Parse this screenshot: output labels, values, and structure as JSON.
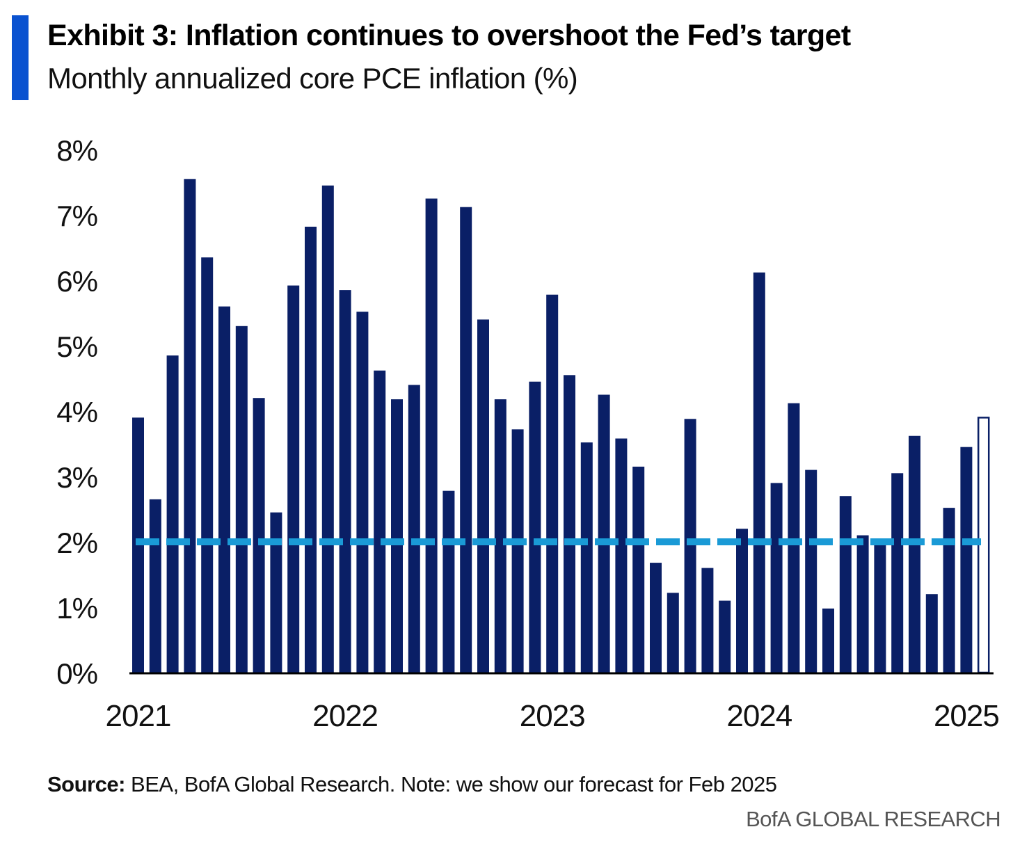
{
  "header": {
    "title": "Exhibit 3: Inflation continues to overshoot the Fed’s target",
    "subtitle": "Monthly annualized core PCE inflation (%)"
  },
  "footer": {
    "source_label": "Source:",
    "source_text": " BEA, BofA Global Research. Note: we show our forecast for Feb 2025",
    "brand": "BofA GLOBAL RESEARCH"
  },
  "colors": {
    "accent": "#0a52d0",
    "bar": "#0a1f66",
    "forecast_outline": "#0a1f66",
    "target_line": "#1a9ad6",
    "axis": "#000000"
  },
  "chart_data": {
    "type": "bar",
    "title": "Exhibit 3: Inflation continues to overshoot the Fed’s target",
    "subtitle": "Monthly annualized core PCE inflation (%)",
    "ylim": [
      0,
      8
    ],
    "yticks": [
      0,
      1,
      2,
      3,
      4,
      5,
      6,
      7,
      8
    ],
    "ytick_labels": [
      "0%",
      "1%",
      "2%",
      "3%",
      "4%",
      "5%",
      "6%",
      "7%",
      "8%"
    ],
    "xtick_labels": [
      "2021",
      "2022",
      "2023",
      "2024",
      "2025"
    ],
    "categories": [
      "Jan 2021",
      "Feb 2021",
      "Mar 2021",
      "Apr 2021",
      "May 2021",
      "Jun 2021",
      "Jul 2021",
      "Aug 2021",
      "Sep 2021",
      "Oct 2021",
      "Nov 2021",
      "Dec 2021",
      "Jan 2022",
      "Feb 2022",
      "Mar 2022",
      "Apr 2022",
      "May 2022",
      "Jun 2022",
      "Jul 2022",
      "Aug 2022",
      "Sep 2022",
      "Oct 2022",
      "Nov 2022",
      "Dec 2022",
      "Jan 2023",
      "Feb 2023",
      "Mar 2023",
      "Apr 2023",
      "May 2023",
      "Jun 2023",
      "Jul 2023",
      "Aug 2023",
      "Sep 2023",
      "Oct 2023",
      "Nov 2023",
      "Dec 2023",
      "Jan 2024",
      "Feb 2024",
      "Mar 2024",
      "Apr 2024",
      "May 2024",
      "Jun 2024",
      "Jul 2024",
      "Aug 2024",
      "Sep 2024",
      "Oct 2024",
      "Nov 2024",
      "Dec 2024",
      "Jan 2025",
      "Feb 2025"
    ],
    "values": [
      3.9,
      2.65,
      4.85,
      7.55,
      6.35,
      5.6,
      5.3,
      4.2,
      2.45,
      5.92,
      6.82,
      7.45,
      5.85,
      5.52,
      4.62,
      4.18,
      4.4,
      7.25,
      2.78,
      7.12,
      5.4,
      4.18,
      3.72,
      4.45,
      5.78,
      4.55,
      3.52,
      4.25,
      3.58,
      3.15,
      1.68,
      1.22,
      3.88,
      1.6,
      1.1,
      2.2,
      6.12,
      2.9,
      4.12,
      3.1,
      0.98,
      2.7,
      2.1,
      2.05,
      3.05,
      3.62,
      1.2,
      2.52,
      3.45,
      3.9
    ],
    "forecast_index": 49,
    "forecast_note": "Feb 2025",
    "reference_line": {
      "value": 2.0,
      "style": "dashed"
    },
    "grid": false,
    "legend": "none"
  }
}
